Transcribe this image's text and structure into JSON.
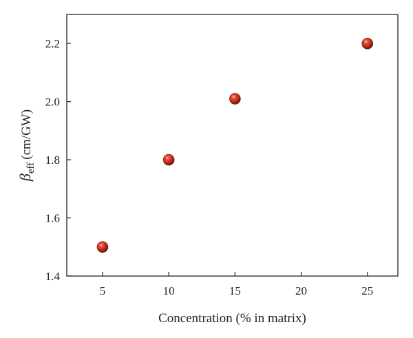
{
  "chart_data": {
    "type": "scatter",
    "title": "",
    "xlabel": "Concentration (% in matrix)",
    "ylabel": {
      "symbol": "β",
      "subscript": "eff",
      "unit": "(cm/GW)"
    },
    "xlim": [
      2.3,
      27.3
    ],
    "ylim": [
      1.4,
      2.3
    ],
    "x_ticks": [
      5,
      10,
      15,
      20,
      25
    ],
    "y_ticks": [
      "1.4",
      "1.6",
      "1.8",
      "2.0",
      "2.2"
    ],
    "grid": false,
    "legend": "none",
    "marker_color": "#c0311e",
    "series": [
      {
        "points": [
          {
            "x": 5,
            "y": 1.5
          },
          {
            "x": 10,
            "y": 1.8
          },
          {
            "x": 15,
            "y": 2.01
          },
          {
            "x": 25,
            "y": 2.2
          }
        ]
      }
    ]
  }
}
